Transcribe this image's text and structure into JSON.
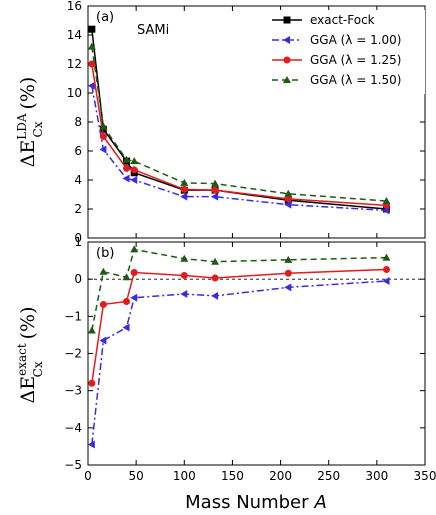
{
  "colors": {
    "exact_fock": "#000000",
    "gga_100": "#3a2be0",
    "gga_125": "#e41a1c",
    "gga_150": "#1e5a12"
  },
  "chart_data": [
    {
      "type": "line",
      "panel_label": "(a)",
      "annotation": "SAMi",
      "ylabel_main": "ΔE",
      "ylabel_sup": "LDA",
      "ylabel_sub": "Cx",
      "ylabel_unit": "(%)",
      "xlim": [
        0,
        350
      ],
      "ylim": [
        0,
        16
      ],
      "yticks": [
        0,
        2,
        4,
        6,
        8,
        10,
        12,
        14,
        16
      ],
      "x": [
        4,
        16,
        40,
        48,
        100,
        132,
        208,
        310
      ],
      "legend_position": "top-right",
      "series": [
        {
          "name": "exact-Fock",
          "style": "solid-square",
          "color": "#000000",
          "values": [
            14.4,
            7.5,
            5.3,
            4.5,
            3.3,
            3.3,
            2.6,
            2.0
          ]
        },
        {
          "name": "GGA (λ = 1.00)",
          "style": "dashdot-triangle-left",
          "color": "#3a2be0",
          "values": [
            10.5,
            6.1,
            4.1,
            4.0,
            2.85,
            2.85,
            2.3,
            1.9
          ]
        },
        {
          "name": "GGA (λ = 1.25)",
          "style": "solid-circle",
          "color": "#e41a1c",
          "values": [
            12.0,
            7.0,
            4.8,
            4.7,
            3.35,
            3.3,
            2.7,
            2.25
          ]
        },
        {
          "name": "GGA (λ = 1.50)",
          "style": "dashed-triangle-up",
          "color": "#1e5a12",
          "values": [
            13.2,
            7.7,
            5.4,
            5.3,
            3.8,
            3.75,
            3.05,
            2.55
          ]
        }
      ]
    },
    {
      "type": "line",
      "panel_label": "(b)",
      "ylabel_main": "ΔE",
      "ylabel_sup": "exact",
      "ylabel_sub": "Cx",
      "ylabel_unit": "(%)",
      "xlabel": "Mass Number",
      "xlabel_var": "A",
      "xlim": [
        0,
        350
      ],
      "ylim": [
        -5,
        1
      ],
      "yticks": [
        -5,
        -4,
        -3,
        -2,
        -1,
        0,
        1
      ],
      "xticks": [
        0,
        50,
        100,
        150,
        200,
        250,
        300,
        350
      ],
      "x": [
        4,
        16,
        40,
        48,
        100,
        132,
        208,
        310
      ],
      "reference_line": 0,
      "series": [
        {
          "name": "GGA (λ = 1.00)",
          "style": "dashdot-triangle-left",
          "color": "#3a2be0",
          "values": [
            -4.45,
            -1.65,
            -1.3,
            -0.5,
            -0.4,
            -0.45,
            -0.22,
            -0.05
          ]
        },
        {
          "name": "GGA (λ = 1.25)",
          "style": "solid-circle",
          "color": "#e41a1c",
          "values": [
            -2.8,
            -0.68,
            -0.6,
            0.18,
            0.1,
            0.03,
            0.16,
            0.26
          ]
        },
        {
          "name": "GGA (λ = 1.50)",
          "style": "dashed-triangle-up",
          "color": "#1e5a12",
          "values": [
            -1.38,
            0.2,
            0.05,
            0.8,
            0.55,
            0.47,
            0.52,
            0.58
          ]
        }
      ]
    }
  ]
}
